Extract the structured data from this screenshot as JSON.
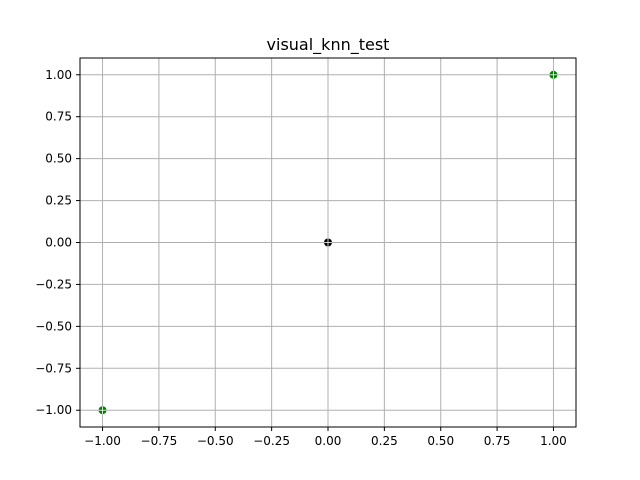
{
  "chart_data": {
    "type": "scatter",
    "title": "visual_knn_test",
    "xlabel": "",
    "ylabel": "",
    "xlim": [
      -1.1,
      1.1
    ],
    "ylim": [
      -1.1,
      1.1
    ],
    "grid": true,
    "xticks": [
      -1.0,
      -0.75,
      -0.5,
      -0.25,
      0.0,
      0.25,
      0.5,
      0.75,
      1.0
    ],
    "yticks": [
      -1.0,
      -0.75,
      -0.5,
      -0.25,
      0.0,
      0.25,
      0.5,
      0.75,
      1.0
    ],
    "xtick_labels": [
      "−1.00",
      "−0.75",
      "−0.50",
      "−0.25",
      "0.00",
      "0.25",
      "0.50",
      "0.75",
      "1.00"
    ],
    "ytick_labels": [
      "−1.00",
      "−0.75",
      "−0.50",
      "−0.25",
      "0.00",
      "0.25",
      "0.50",
      "0.75",
      "1.00"
    ],
    "points": [
      {
        "x": 1.0,
        "y": 1.0,
        "color": "#008000"
      },
      {
        "x": -1.0,
        "y": -1.0,
        "color": "#008000"
      },
      {
        "x": 0.0,
        "y": 0.0,
        "color": "#000000"
      }
    ]
  }
}
